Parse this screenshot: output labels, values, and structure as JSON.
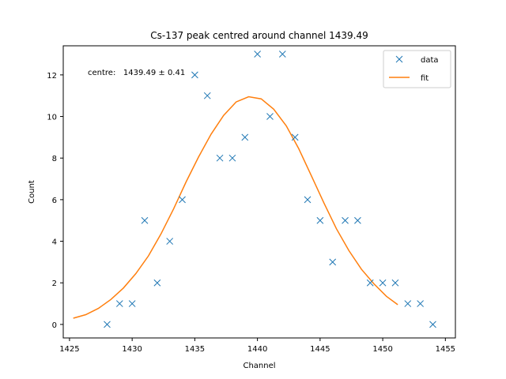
{
  "chart_data": {
    "type": "scatter",
    "title": "Cs-137 peak centred around channel 1439.49",
    "xlabel": "Channel",
    "ylabel": "Count",
    "xlim": [
      1424.5,
      1455.8
    ],
    "ylim": [
      -0.65,
      13.4
    ],
    "xticks": [
      1425,
      1430,
      1435,
      1440,
      1445,
      1450,
      1455
    ],
    "yticks": [
      0,
      2,
      4,
      6,
      8,
      10,
      12
    ],
    "grid": false,
    "legend_position": "top-right",
    "annotation": "centre:   1439.49 ± 0.41",
    "series": [
      {
        "name": "data",
        "kind": "scatter",
        "marker": "x",
        "color": "#1f77b4",
        "x": [
          1428,
          1429,
          1430,
          1431,
          1432,
          1433,
          1434,
          1435,
          1436,
          1437,
          1438,
          1439,
          1440,
          1441,
          1442,
          1443,
          1444,
          1445,
          1446,
          1447,
          1448,
          1449,
          1450,
          1451,
          1452,
          1453,
          1454
        ],
        "y": [
          0,
          1,
          1,
          5,
          2,
          4,
          6,
          12,
          11,
          8,
          8,
          9,
          13,
          10,
          13,
          9,
          6,
          5,
          3,
          5,
          5,
          2,
          2,
          2,
          1,
          1,
          0
        ]
      },
      {
        "name": "fit",
        "kind": "line",
        "color": "#ff7f0e",
        "x": [
          1425.3,
          1426.3,
          1427.3,
          1428.3,
          1429.3,
          1430.3,
          1431.3,
          1432.3,
          1433.3,
          1434.3,
          1435.3,
          1436.3,
          1437.3,
          1438.3,
          1439.3,
          1440.3,
          1441.3,
          1442.3,
          1443.3,
          1444.3,
          1445.3,
          1446.3,
          1447.3,
          1448.3,
          1449.3,
          1450.3,
          1451.2
        ],
        "y": [
          0.3,
          0.47,
          0.77,
          1.2,
          1.75,
          2.45,
          3.3,
          4.35,
          5.55,
          6.85,
          8.05,
          9.15,
          10.05,
          10.7,
          10.95,
          10.85,
          10.35,
          9.55,
          8.45,
          7.15,
          5.85,
          4.6,
          3.55,
          2.65,
          1.95,
          1.35,
          0.95
        ]
      }
    ]
  }
}
